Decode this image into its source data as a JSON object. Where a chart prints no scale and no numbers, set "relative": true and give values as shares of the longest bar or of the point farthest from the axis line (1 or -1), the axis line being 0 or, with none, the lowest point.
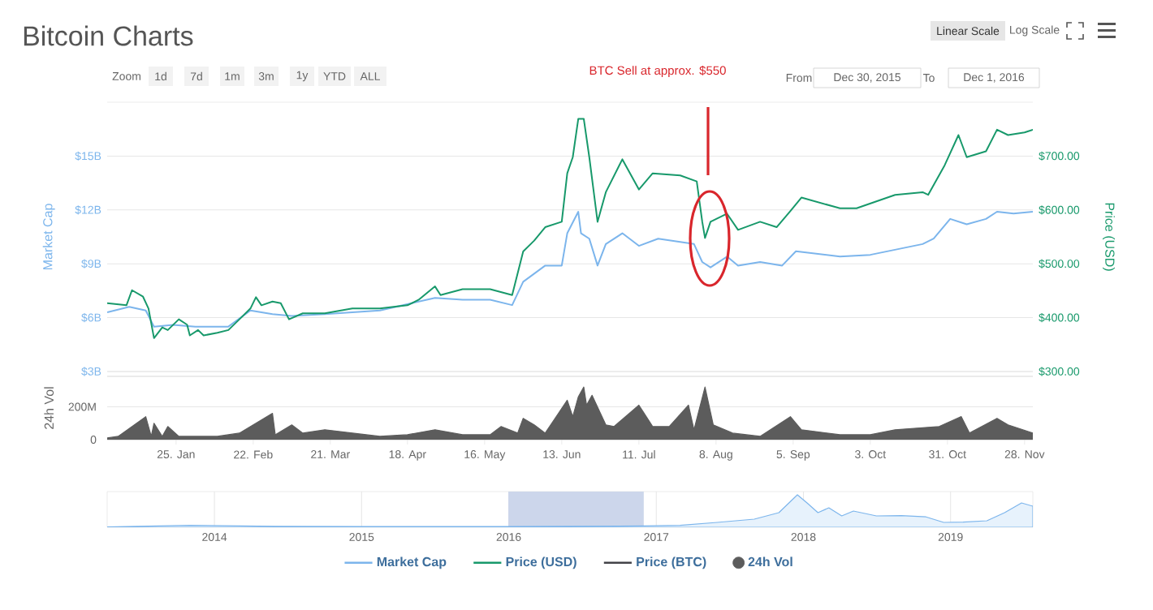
{
  "chart_data": [
    {
      "type": "line",
      "title": "Bitcoin Charts",
      "ylabel": "Market Cap",
      "y2label": "Price (USD)",
      "xlim": [
        "2015-12-31",
        "2016-12-01"
      ],
      "ylim": [
        3,
        18
      ],
      "y2lim": [
        300,
        800
      ],
      "yticks": [
        {
          "value": 3,
          "label": "$3B"
        },
        {
          "value": 6,
          "label": "$6B"
        },
        {
          "value": 9,
          "label": "$9B"
        },
        {
          "value": 12,
          "label": "$12B"
        },
        {
          "value": 15,
          "label": "$15B"
        }
      ],
      "y2ticks": [
        {
          "value": 300,
          "label": "$300.00"
        },
        {
          "value": 400,
          "label": "$400.00"
        },
        {
          "value": 500,
          "label": "$500.00"
        },
        {
          "value": 600,
          "label": "$600.00"
        },
        {
          "value": 700,
          "label": "$700.00"
        }
      ],
      "grid": "y",
      "legend": "bottom",
      "tick_labels": "y",
      "series": [
        {
          "name": "Market Cap",
          "color": "#7cb5ec",
          "x": [
            "2015-12-31",
            "2016-01-08",
            "2016-01-14",
            "2016-01-17",
            "2016-01-24",
            "2016-02-01",
            "2016-02-13",
            "2016-02-21",
            "2016-02-29",
            "2016-03-07",
            "2016-03-19",
            "2016-04-08",
            "2016-04-28",
            "2016-05-08",
            "2016-05-18",
            "2016-05-26",
            "2016-05-30",
            "2016-06-07",
            "2016-06-13",
            "2016-06-15",
            "2016-06-19",
            "2016-06-20",
            "2016-06-23",
            "2016-06-26",
            "2016-06-29",
            "2016-07-05",
            "2016-07-11",
            "2016-07-18",
            "2016-07-31",
            "2016-08-03",
            "2016-08-06",
            "2016-08-12",
            "2016-08-16",
            "2016-08-24",
            "2016-09-01",
            "2016-09-06",
            "2016-09-22",
            "2016-10-03",
            "2016-10-22",
            "2016-10-26",
            "2016-11-01",
            "2016-11-07",
            "2016-11-14",
            "2016-11-18",
            "2016-11-24",
            "2016-12-01"
          ],
          "values": [
            6.3,
            6.6,
            6.4,
            5.5,
            5.6,
            5.5,
            5.5,
            6.4,
            6.2,
            6.1,
            6.2,
            6.4,
            7.1,
            7.0,
            7.0,
            6.7,
            8.0,
            8.9,
            8.9,
            10.7,
            11.9,
            10.7,
            10.4,
            8.9,
            10.1,
            10.7,
            10.0,
            10.4,
            10.1,
            9.1,
            8.8,
            9.4,
            8.9,
            9.1,
            8.9,
            9.7,
            9.4,
            9.5,
            10.1,
            10.4,
            11.5,
            11.2,
            11.5,
            11.9,
            11.8,
            11.9
          ]
        },
        {
          "name": "Price (USD)",
          "color": "#18996b",
          "axis": "y2",
          "x": [
            "2015-12-31",
            "2016-01-07",
            "2016-01-09",
            "2016-01-13",
            "2016-01-15",
            "2016-01-17",
            "2016-01-20",
            "2016-01-22",
            "2016-01-26",
            "2016-01-29",
            "2016-01-30",
            "2016-02-02",
            "2016-02-04",
            "2016-02-09",
            "2016-02-13",
            "2016-02-17",
            "2016-02-21",
            "2016-02-23",
            "2016-02-25",
            "2016-02-29",
            "2016-03-03",
            "2016-03-06",
            "2016-03-11",
            "2016-03-19",
            "2016-03-29",
            "2016-04-08",
            "2016-04-18",
            "2016-04-22",
            "2016-04-28",
            "2016-04-30",
            "2016-05-08",
            "2016-05-18",
            "2016-05-26",
            "2016-05-30",
            "2016-06-03",
            "2016-06-07",
            "2016-06-13",
            "2016-06-15",
            "2016-06-17",
            "2016-06-19",
            "2016-06-21",
            "2016-06-23",
            "2016-06-26",
            "2016-06-29",
            "2016-07-05",
            "2016-07-11",
            "2016-07-16",
            "2016-07-26",
            "2016-08-01",
            "2016-08-03",
            "2016-08-04",
            "2016-08-06",
            "2016-08-12",
            "2016-08-16",
            "2016-08-24",
            "2016-08-30",
            "2016-09-04",
            "2016-09-08",
            "2016-09-22",
            "2016-09-28",
            "2016-10-12",
            "2016-10-22",
            "2016-10-24",
            "2016-10-30",
            "2016-11-04",
            "2016-11-07",
            "2016-11-14",
            "2016-11-18",
            "2016-11-22",
            "2016-11-28",
            "2016-12-01"
          ],
          "values": [
            427,
            423,
            451,
            439,
            417,
            362,
            382,
            377,
            397,
            387,
            367,
            377,
            367,
            372,
            377,
            397,
            417,
            438,
            423,
            430,
            427,
            397,
            408,
            408,
            417,
            417,
            423,
            433,
            458,
            442,
            453,
            453,
            442,
            523,
            543,
            568,
            578,
            668,
            698,
            769,
            769,
            698,
            578,
            633,
            694,
            638,
            668,
            664,
            653,
            578,
            548,
            578,
            593,
            563,
            578,
            568,
            598,
            623,
            603,
            603,
            628,
            633,
            628,
            683,
            739,
            698,
            709,
            749,
            739,
            744,
            749
          ]
        },
        {
          "name": "Price (BTC)",
          "color": "#434348"
        }
      ],
      "annotations": [
        "Zoom",
        "1d",
        "7d",
        "1m",
        "3m",
        "1y",
        "YTD",
        "ALL",
        "From",
        "Dec 30, 2015",
        "To",
        "Dec 1, 2016",
        "Linear Scale",
        "Log Scale",
        "BTC Sell at approx. $550"
      ]
    },
    {
      "type": "area",
      "ylabel": "24h Vol",
      "xlim": [
        "2015-12-31",
        "2016-12-01"
      ],
      "ylim": [
        0,
        385
      ],
      "yticks": [
        0,
        {
          "value": 200,
          "label": "200M"
        }
      ],
      "xticks": [
        {
          "value": "2016-01-25",
          "label": "25. Jan"
        },
        {
          "value": "2016-02-22",
          "label": "22. Feb"
        },
        {
          "value": "2016-03-21",
          "label": "21. Mar"
        },
        {
          "value": "2016-04-18",
          "label": "18. Apr"
        },
        {
          "value": "2016-05-16",
          "label": "16. May"
        },
        {
          "value": "2016-06-13",
          "label": "13. Jun"
        },
        {
          "value": "2016-07-11",
          "label": "11. Jul"
        },
        {
          "value": "2016-08-08",
          "label": "8. Aug"
        },
        {
          "value": "2016-09-05",
          "label": "5. Sep"
        },
        {
          "value": "2016-10-03",
          "label": "3. Oct"
        },
        {
          "value": "2016-10-31",
          "label": "31. Oct"
        },
        {
          "value": "2016-11-28",
          "label": "28. Nov"
        }
      ],
      "grid": "y",
      "series": [
        {
          "name": "24h Vol",
          "color": "#5c5c5c",
          "x": [
            "2015-12-31",
            "2016-01-04",
            "2016-01-14",
            "2016-01-16",
            "2016-01-17",
            "2016-01-20",
            "2016-01-22",
            "2016-01-26",
            "2016-02-09",
            "2016-02-17",
            "2016-02-29",
            "2016-03-01",
            "2016-03-07",
            "2016-03-11",
            "2016-03-19",
            "2016-03-29",
            "2016-04-08",
            "2016-04-18",
            "2016-04-28",
            "2016-05-08",
            "2016-05-18",
            "2016-05-22",
            "2016-05-28",
            "2016-05-30",
            "2016-06-03",
            "2016-06-07",
            "2016-06-15",
            "2016-06-17",
            "2016-06-19",
            "2016-06-21",
            "2016-06-22",
            "2016-06-24",
            "2016-06-29",
            "2016-07-02",
            "2016-07-11",
            "2016-07-16",
            "2016-07-22",
            "2016-07-29",
            "2016-07-31",
            "2016-08-04",
            "2016-08-07",
            "2016-08-14",
            "2016-08-24",
            "2016-09-04",
            "2016-09-08",
            "2016-09-22",
            "2016-10-03",
            "2016-10-12",
            "2016-10-28",
            "2016-11-05",
            "2016-11-08",
            "2016-11-18",
            "2016-11-22",
            "2016-12-01"
          ],
          "values": [
            10,
            20,
            140,
            20,
            100,
            20,
            80,
            20,
            20,
            40,
            160,
            30,
            90,
            40,
            60,
            40,
            20,
            30,
            60,
            30,
            30,
            80,
            40,
            130,
            90,
            40,
            240,
            140,
            260,
            320,
            210,
            270,
            90,
            80,
            210,
            80,
            80,
            210,
            60,
            320,
            90,
            40,
            20,
            140,
            60,
            30,
            30,
            60,
            80,
            140,
            40,
            130,
            90,
            40
          ]
        }
      ]
    },
    {
      "type": "area",
      "relative": true,
      "xlim": [
        "2013-04-10",
        "2019-07-24"
      ],
      "grid": "x",
      "tick_labels": "x",
      "xticks": [
        {
          "value": "2014-01-01",
          "label": "2014"
        },
        {
          "value": "2015-01-01",
          "label": "2015"
        },
        {
          "value": "2016-01-01",
          "label": "2016"
        },
        {
          "value": "2017-01-01",
          "label": "2017"
        },
        {
          "value": "2018-01-01",
          "label": "2018"
        },
        {
          "value": "2019-01-01",
          "label": "2019"
        }
      ],
      "bands": [
        {
          "axis": "x",
          "from": "2015-12-31",
          "to": "2016-12-01",
          "color": "#ccd6eb"
        }
      ],
      "series": [
        {
          "color": "#7cb5ec",
          "x": [
            "2013-04-10",
            "2013-11-01",
            "2014-06-01",
            "2015-01-01",
            "2016-01-01",
            "2016-12-01",
            "2017-03-01",
            "2017-06-01",
            "2017-09-01",
            "2017-11-01",
            "2017-12-17",
            "2018-01-10",
            "2018-02-06",
            "2018-03-05",
            "2018-04-06",
            "2018-05-05",
            "2018-07-01",
            "2018-09-01",
            "2018-11-01",
            "2018-12-15",
            "2019-02-01",
            "2019-04-01",
            "2019-05-15",
            "2019-06-26",
            "2019-07-24"
          ],
          "values": [
            0.01,
            0.06,
            0.03,
            0.02,
            0.02,
            0.04,
            0.06,
            0.15,
            0.25,
            0.45,
            1.0,
            0.75,
            0.45,
            0.6,
            0.35,
            0.5,
            0.35,
            0.36,
            0.32,
            0.15,
            0.16,
            0.2,
            0.45,
            0.75,
            0.65
          ]
        }
      ]
    }
  ]
}
